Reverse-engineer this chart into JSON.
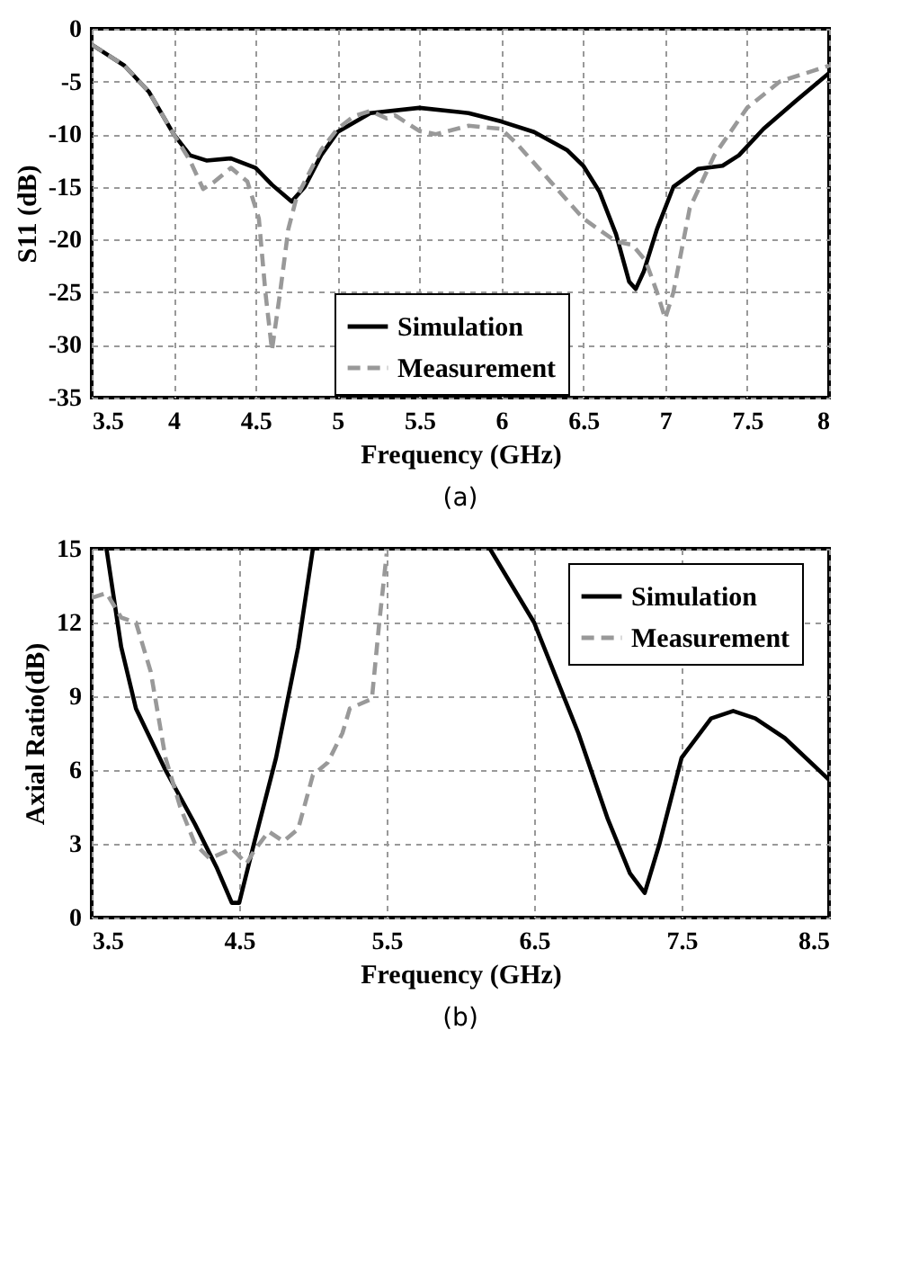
{
  "chart_data": [
    {
      "type": "line",
      "title": "(a)",
      "xlabel": "Frequency (GHz)",
      "ylabel": "S11 (dB)",
      "xlim": [
        3.5,
        8
      ],
      "ylim": [
        -35,
        0
      ],
      "xticks": [
        3.5,
        4,
        4.5,
        5,
        5.5,
        6,
        6.5,
        7,
        7.5,
        8
      ],
      "yticks": [
        -35,
        -30,
        -25,
        -20,
        -15,
        -10,
        -5,
        0
      ],
      "grid": true,
      "legend": "bottom",
      "marker": "none",
      "series": [
        {
          "name": "Simulation",
          "color": "#000000",
          "line_style": "solid",
          "x": [
            3.5,
            3.7,
            3.85,
            4.0,
            4.1,
            4.2,
            4.35,
            4.5,
            4.6,
            4.72,
            4.8,
            4.9,
            5.0,
            5.2,
            5.5,
            5.8,
            6.0,
            6.2,
            6.4,
            6.5,
            6.6,
            6.7,
            6.78,
            6.82,
            6.87,
            6.95,
            7.05,
            7.2,
            7.35,
            7.45,
            7.6,
            7.8,
            8.0
          ],
          "values": [
            -1.5,
            -3.5,
            -6,
            -10,
            -12,
            -12.5,
            -12.3,
            -13.2,
            -14.8,
            -16.4,
            -15,
            -12,
            -9.8,
            -8,
            -7.5,
            -8,
            -8.8,
            -9.8,
            -11.5,
            -13,
            -15.5,
            -19.5,
            -24,
            -24.7,
            -23,
            -19,
            -15,
            -13.3,
            -13,
            -12,
            -9.5,
            -6.8,
            -4.2
          ]
        },
        {
          "name": "Measurement",
          "color": "#999999",
          "line_style": "dashed",
          "x": [
            3.5,
            3.7,
            3.85,
            4.0,
            4.1,
            4.18,
            4.25,
            4.35,
            4.45,
            4.52,
            4.56,
            4.6,
            4.65,
            4.7,
            4.75,
            4.9,
            5.0,
            5.1,
            5.2,
            5.3,
            5.35,
            5.5,
            5.6,
            5.8,
            6.0,
            6.1,
            6.3,
            6.5,
            6.7,
            6.8,
            6.88,
            6.95,
            7.0,
            7.05,
            7.15,
            7.3,
            7.5,
            7.7,
            7.9,
            8.0
          ],
          "values": [
            -1.5,
            -3.5,
            -6,
            -10,
            -12.5,
            -15.2,
            -14.5,
            -13.2,
            -14.5,
            -18,
            -25,
            -30.5,
            -25,
            -19,
            -16,
            -11.5,
            -9.5,
            -8.3,
            -7.8,
            -8.5,
            -8.2,
            -9.7,
            -10,
            -9.2,
            -9.5,
            -11,
            -14.5,
            -18,
            -20.2,
            -20.5,
            -22,
            -25,
            -27.5,
            -25,
            -17,
            -12,
            -7.5,
            -5,
            -4,
            -3.5
          ]
        }
      ]
    },
    {
      "type": "line",
      "title": "(b)",
      "xlabel": "Frequency (GHz)",
      "ylabel": "Axial Ratio(dB)",
      "xlim": [
        3.5,
        8.5
      ],
      "ylim": [
        0,
        15
      ],
      "xticks": [
        3.5,
        4.5,
        5.5,
        6.5,
        7.5,
        8.5
      ],
      "yticks": [
        0,
        3,
        6,
        9,
        12,
        15
      ],
      "grid": true,
      "legend": "top right",
      "marker": "none",
      "series": [
        {
          "name": "Simulation",
          "color": "#000000",
          "line_style": "solid",
          "x": [
            3.6,
            3.7,
            3.8,
            4.0,
            4.2,
            4.35,
            4.45,
            4.5,
            4.6,
            4.75,
            4.9,
            5.0,
            5.6,
            6.2,
            6.5,
            6.8,
            7.0,
            7.15,
            7.25,
            7.35,
            7.5,
            7.7,
            7.85,
            8.0,
            8.2,
            8.5
          ],
          "values": [
            15,
            11,
            8.5,
            6,
            3.8,
            2,
            0.6,
            0.6,
            3,
            6.5,
            11,
            15,
            null,
            15,
            12,
            7.5,
            4,
            1.8,
            1,
            3,
            6.5,
            8.1,
            8.4,
            8.1,
            7.3,
            5.6
          ]
        },
        {
          "name": "Measurement",
          "color": "#999999",
          "line_style": "dashed",
          "x": [
            3.5,
            3.6,
            3.7,
            3.8,
            3.9,
            4.0,
            4.1,
            4.2,
            4.3,
            4.45,
            4.55,
            4.6,
            4.7,
            4.8,
            4.9,
            5.0,
            5.1,
            5.2,
            5.25,
            5.4,
            5.45,
            5.5
          ],
          "values": [
            13,
            13.2,
            12.2,
            12,
            10,
            6.5,
            4.5,
            3,
            2.4,
            2.8,
            2.2,
            2.7,
            3.5,
            3.1,
            3.6,
            5.8,
            6.3,
            7.5,
            8.5,
            8.9,
            12,
            14.8
          ]
        }
      ]
    }
  ]
}
